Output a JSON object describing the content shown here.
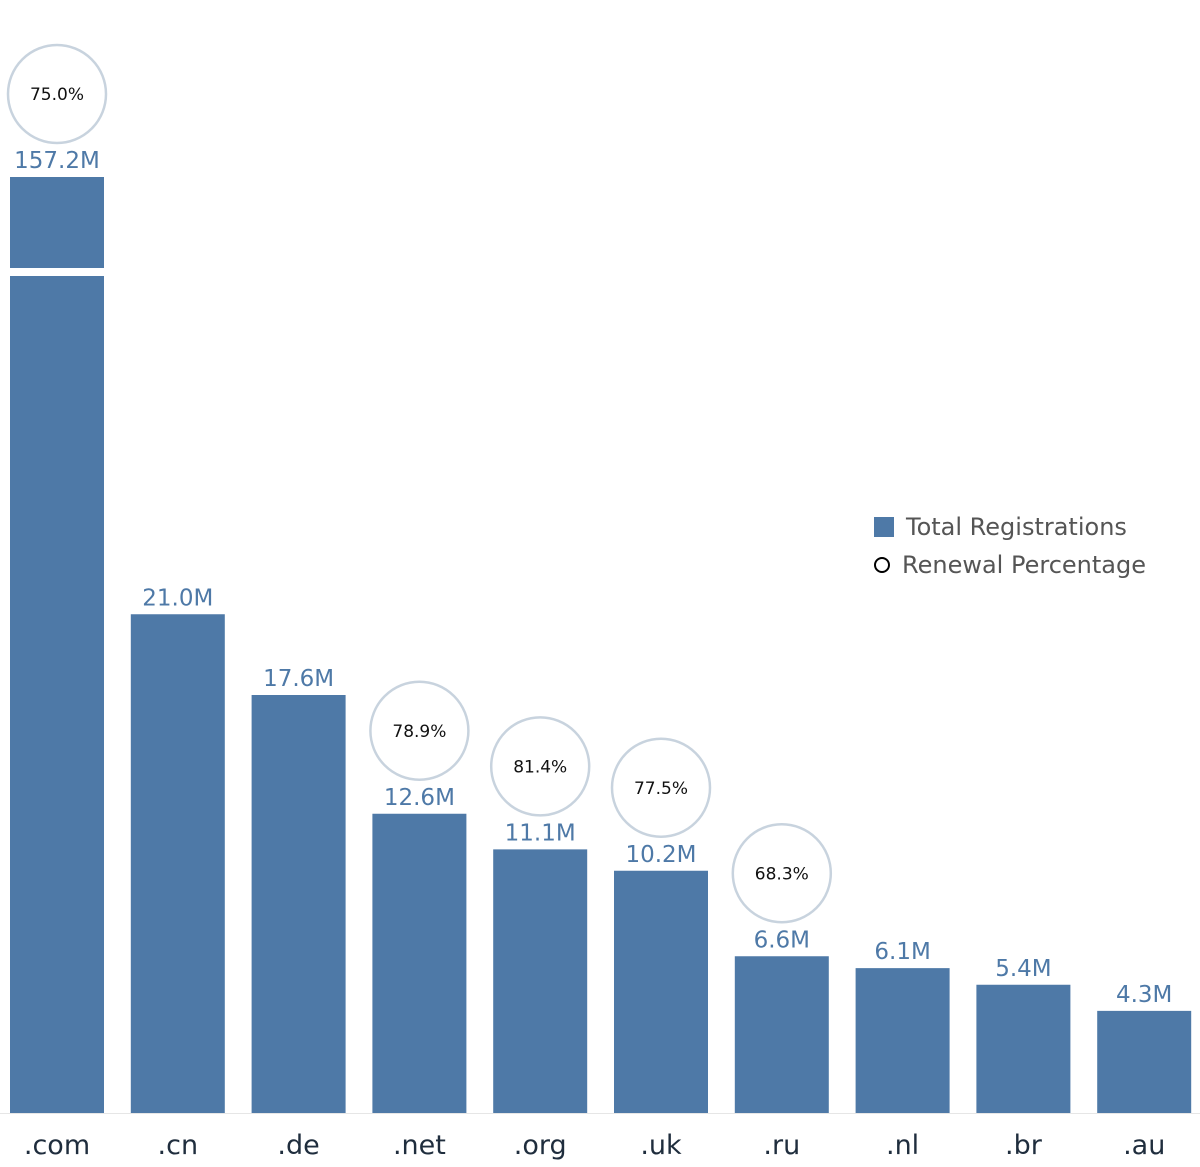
{
  "chart_data": {
    "type": "bar",
    "categories": [
      ".com",
      ".cn",
      ".de",
      ".net",
      ".org",
      ".uk",
      ".ru",
      ".nl",
      ".br",
      ".au"
    ],
    "series": [
      {
        "name": "Total Registrations",
        "values": [
          157.2,
          21.0,
          17.6,
          12.6,
          11.1,
          10.2,
          6.6,
          6.1,
          5.4,
          4.3
        ],
        "labels": [
          "157.2M",
          "21.0M",
          "17.6M",
          "12.6M",
          "11.1M",
          "10.2M",
          "6.6M",
          "6.1M",
          "5.4M",
          "4.3M"
        ],
        "unit": "M"
      },
      {
        "name": "Renewal Percentage",
        "values": [
          75.0,
          null,
          null,
          78.9,
          81.4,
          77.5,
          68.3,
          null,
          null,
          null
        ],
        "labels": [
          "75.0%",
          "",
          "",
          "78.9%",
          "81.4%",
          "77.5%",
          "68.3%",
          "",
          "",
          ""
        ],
        "unit": "%"
      }
    ],
    "axis_break": true,
    "grid": false,
    "legend_position": "right",
    "colors": {
      "bar": "#4e79a7",
      "bar_label": "#4e79a7",
      "circle_stroke": "#c8d3de",
      "axis_label": "#1f2d3d"
    }
  },
  "legend": {
    "total_registrations": "Total Registrations",
    "renewal_percentage": "Renewal Percentage"
  }
}
